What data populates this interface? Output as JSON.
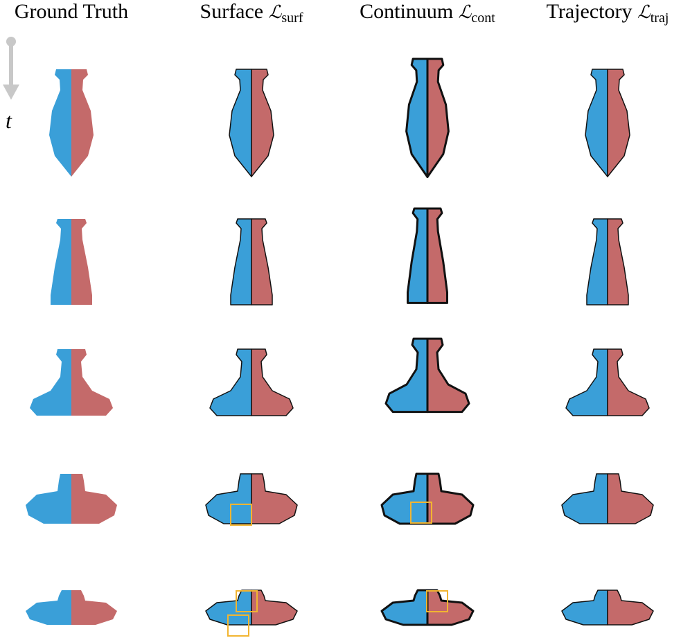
{
  "columns": [
    {
      "text": "Ground Truth"
    },
    {
      "text": "Surface",
      "symbol": "ℒ",
      "subscript": "surf"
    },
    {
      "text": "Continuum",
      "symbol": "ℒ",
      "subscript": "cont"
    },
    {
      "text": "Trajectory",
      "symbol": "ℒ",
      "subscript": "traj"
    }
  ],
  "time_label": "t"
}
